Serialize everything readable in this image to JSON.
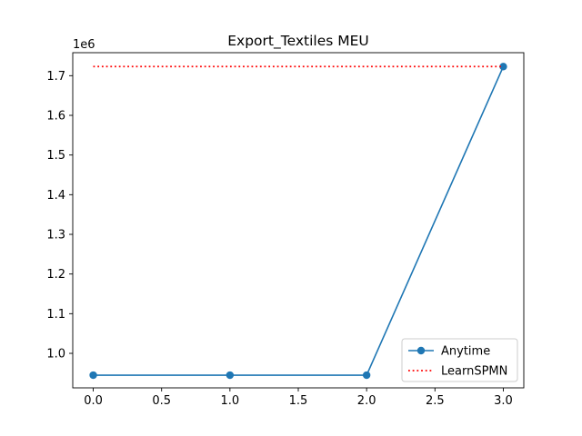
{
  "chart_data": {
    "type": "line",
    "title": "Export_Textiles MEU",
    "xlabel": "",
    "ylabel": "",
    "y_offset_label": "1e6",
    "x": [
      0,
      1,
      2,
      3
    ],
    "series": [
      {
        "name": "Anytime",
        "values": [
          945000,
          945000,
          945000,
          1723000
        ],
        "color": "#1f77b4",
        "style": "solid",
        "marker": "circle"
      },
      {
        "name": "LearnSPMN",
        "values": [
          1723000,
          1723000,
          1723000,
          1723000
        ],
        "color": "#ff0000",
        "style": "dotted",
        "marker": "none"
      }
    ],
    "xlim": [
      -0.15,
      3.15
    ],
    "ylim": [
      913000,
      1758000
    ],
    "xticks": [
      0.0,
      0.5,
      1.0,
      1.5,
      2.0,
      2.5,
      3.0
    ],
    "xtick_labels": [
      "0.0",
      "0.5",
      "1.0",
      "1.5",
      "2.0",
      "2.5",
      "3.0"
    ],
    "yticks": [
      1.0,
      1.1,
      1.2,
      1.3,
      1.4,
      1.5,
      1.6,
      1.7
    ],
    "ytick_labels": [
      "1.0",
      "1.1",
      "1.2",
      "1.3",
      "1.4",
      "1.5",
      "1.6",
      "1.7"
    ],
    "grid": false,
    "legend_position": "lower-right"
  }
}
